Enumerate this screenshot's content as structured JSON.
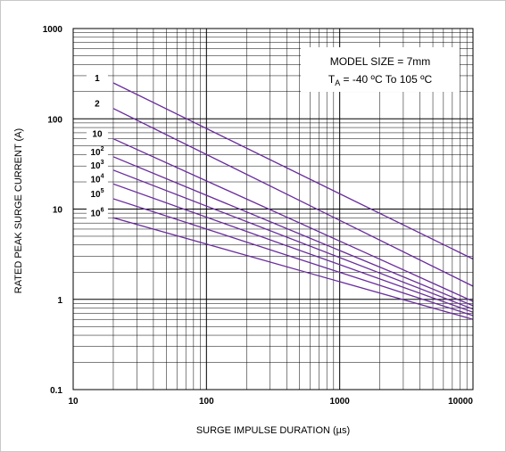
{
  "chart_data": {
    "type": "line",
    "title": "",
    "xlabel": "SURGE IMPULSE DURATION (µs)",
    "ylabel": "RATED PEAK SURGE CURRENT (A)",
    "x_scale": "log",
    "y_scale": "log",
    "xlim": [
      10,
      10000
    ],
    "ylim": [
      0.1,
      1000
    ],
    "x_ticks": [
      "10",
      "100",
      "1000",
      "10000"
    ],
    "y_ticks": [
      "0.1",
      "1",
      "10",
      "100",
      "1000"
    ],
    "grid": true,
    "annotation": {
      "line1": "MODEL SIZE = 7mm",
      "line2_prefix": "T",
      "line2_sub": "A",
      "line2_rest": " = -40 ºC To 105 ºC"
    },
    "series_color": "#6a2c9e",
    "series": [
      {
        "name": "1",
        "label_base": "1",
        "label_exp": "",
        "x": [
          20,
          10000
        ],
        "y": [
          250,
          2.8
        ]
      },
      {
        "name": "2",
        "label_base": "2",
        "label_exp": "",
        "x": [
          20,
          10000
        ],
        "y": [
          130,
          1.4
        ]
      },
      {
        "name": "10",
        "label_base": "10",
        "label_exp": "",
        "x": [
          20,
          10000
        ],
        "y": [
          60,
          0.95
        ]
      },
      {
        "name": "10²",
        "label_base": "10",
        "label_exp": "2",
        "x": [
          20,
          10000
        ],
        "y": [
          38,
          0.85
        ]
      },
      {
        "name": "10³",
        "label_base": "10",
        "label_exp": "3",
        "x": [
          20,
          10000
        ],
        "y": [
          27,
          0.78
        ]
      },
      {
        "name": "10⁴",
        "label_base": "10",
        "label_exp": "4",
        "x": [
          20,
          10000
        ],
        "y": [
          19,
          0.72
        ]
      },
      {
        "name": "10⁵",
        "label_base": "10",
        "label_exp": "5",
        "x": [
          20,
          10000
        ],
        "y": [
          13,
          0.66
        ]
      },
      {
        "name": "10⁶",
        "label_base": "10",
        "label_exp": "6",
        "x": [
          20,
          10000
        ],
        "y": [
          8,
          0.6
        ]
      }
    ]
  }
}
